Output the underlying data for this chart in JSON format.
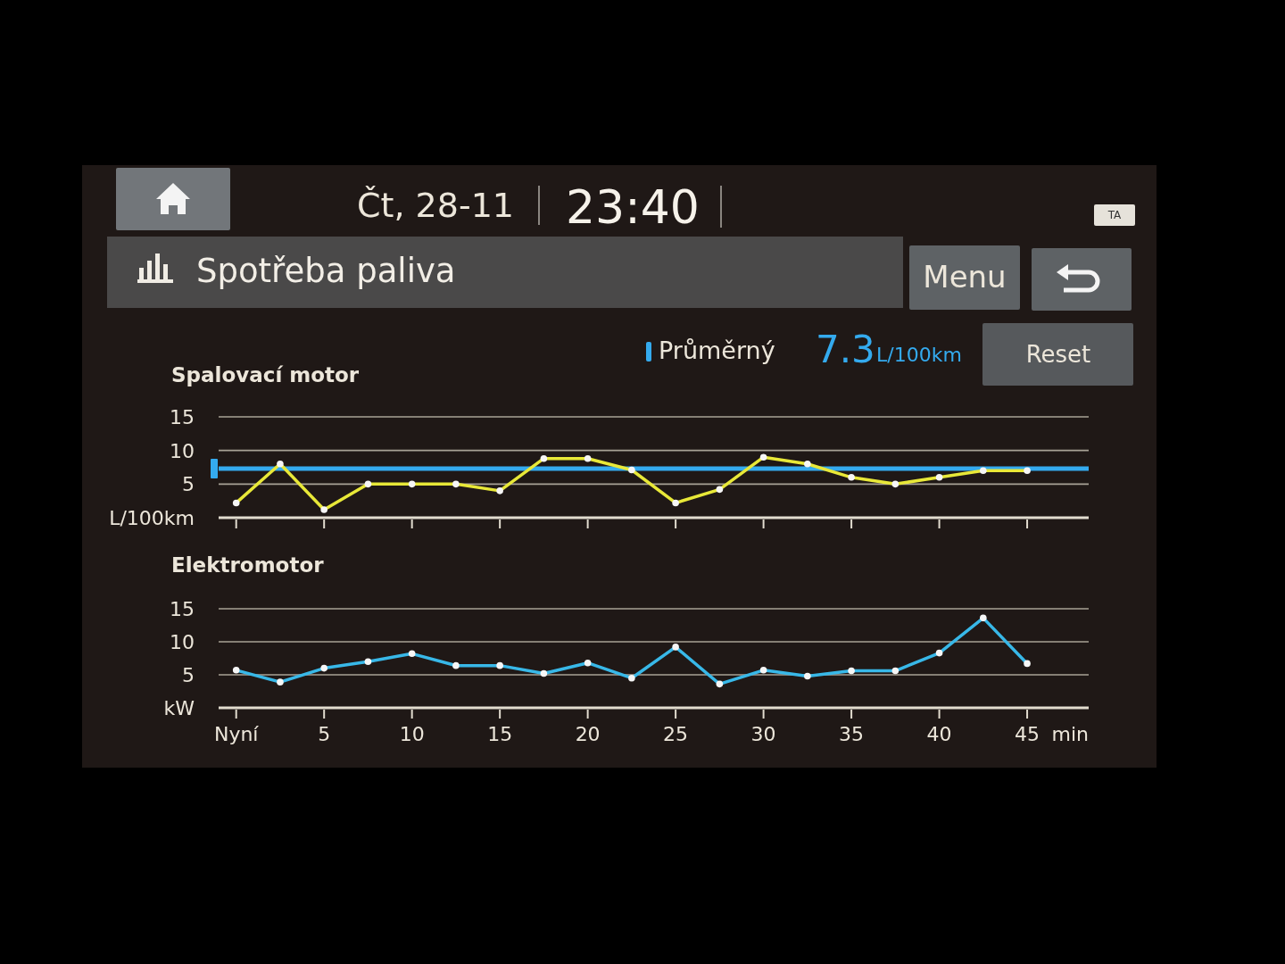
{
  "chart_data": [
    {
      "type": "other",
      "title": "Spotřeba paliva",
      "annotations": [
        "Čt, 28-11",
        "23:40",
        "TA",
        "Menu",
        "Reset"
      ]
    },
    {
      "type": "line",
      "title": "Spalovací motor",
      "x": [
        0,
        2.5,
        5,
        7.5,
        10,
        12.5,
        15,
        17.5,
        20,
        22.5,
        25,
        27.5,
        30,
        32.5,
        35,
        37.5,
        40,
        42.5,
        45
      ],
      "series": [
        {
          "color": "#e8e838",
          "values": [
            2.2,
            8.0,
            1.2,
            5.0,
            5.0,
            5.0,
            4.0,
            8.8,
            8.8,
            7.1,
            2.2,
            4.2,
            9.0,
            8.0,
            6.0,
            5.0,
            6.0,
            7.0,
            7.0
          ]
        }
      ],
      "xlim": [
        -1,
        48.5
      ],
      "xticks": [
        0,
        5,
        10,
        15,
        20,
        25,
        30,
        35,
        40,
        45
      ],
      "ylim": [
        0,
        15
      ],
      "yticks": [
        5,
        10,
        15
      ],
      "ylabel": "L/100km",
      "tick_labels": "y",
      "grid": "y",
      "marker": "circle",
      "ref_lines": [
        {
          "axis": "y",
          "value": 7.3,
          "label": "Průměrný",
          "color": "#34aaee"
        }
      ],
      "annotations": [
        "7.3"
      ]
    },
    {
      "type": "line",
      "title": "Elektromotor",
      "x": [
        0,
        2.5,
        5,
        7.5,
        10,
        12.5,
        15,
        17.5,
        20,
        22.5,
        25,
        27.5,
        30,
        32.5,
        35,
        37.5,
        40,
        42.5,
        45
      ],
      "series": [
        {
          "color": "#38b8e8",
          "values": [
            5.7,
            3.9,
            6.0,
            7.0,
            8.2,
            6.4,
            6.4,
            5.2,
            6.8,
            4.5,
            9.2,
            3.6,
            5.7,
            4.8,
            5.6,
            5.6,
            8.3,
            13.6,
            6.7
          ]
        }
      ],
      "xlim": [
        -1,
        48.5
      ],
      "xticks": [
        {
          "value": 0,
          "label": "Nyní"
        },
        5,
        10,
        15,
        20,
        25,
        30,
        35,
        40,
        45
      ],
      "xlabel": "min",
      "ylim": [
        0,
        15
      ],
      "yticks": [
        5,
        10,
        15
      ],
      "ylabel": "kW",
      "grid": "y",
      "marker": "circle"
    }
  ]
}
